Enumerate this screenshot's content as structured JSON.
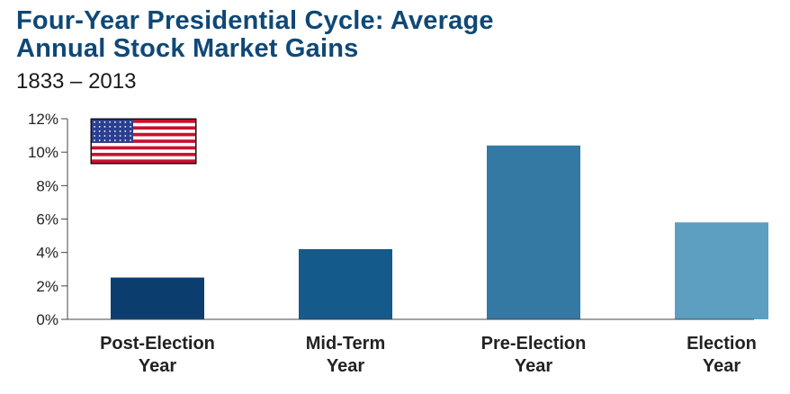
{
  "chart_data": {
    "type": "bar",
    "title": "Four-Year Presidential Cycle: Average Annual Stock Market Gains",
    "title_lines": [
      "Four-Year Presidential Cycle: Average",
      "Annual Stock Market Gains"
    ],
    "subtitle": "1833 – 2013",
    "categories": [
      "Post-Election Year",
      "Mid-Term Year",
      "Pre-Election Year",
      "Election Year"
    ],
    "category_lines": [
      [
        "Post-Election",
        "Year"
      ],
      [
        "Mid-Term",
        "Year"
      ],
      [
        "Pre-Election",
        "Year"
      ],
      [
        "Election",
        "Year"
      ]
    ],
    "values": [
      2.5,
      4.2,
      10.4,
      5.8
    ],
    "unit": "%",
    "ylim": [
      0,
      12
    ],
    "yticks": [
      0,
      2,
      4,
      6,
      8,
      10,
      12
    ],
    "ytick_labels": [
      "0%",
      "2%",
      "4%",
      "6%",
      "8%",
      "10%",
      "12%"
    ],
    "bar_colors": [
      "#0b3e6f",
      "#145a8a",
      "#3479a3",
      "#5c9fc0"
    ],
    "grid": false,
    "xlabel": "",
    "ylabel": ""
  },
  "flag": {
    "name": "us-flag-icon",
    "stripe_red": "#c8102e",
    "canton_blue": "#2a3f8f"
  }
}
